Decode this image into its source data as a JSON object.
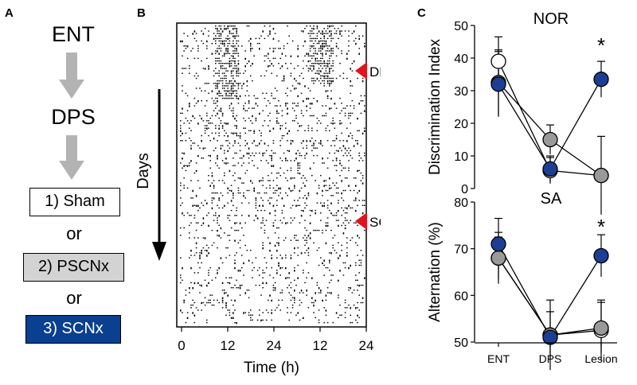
{
  "panel_a": {
    "letter": "A",
    "step1": "ENT",
    "step2": "DPS",
    "groups": [
      {
        "label": "1) Sham",
        "fill": "#ffffff",
        "text_color": "#000000"
      },
      {
        "label": "2) PSCNx",
        "fill": "#d3d3d3",
        "text_color": "#000000"
      },
      {
        "label": "3) SCNx",
        "fill": "#0b3f8f",
        "text_color": "#ffffff"
      }
    ],
    "or_label": "or",
    "arrow_color": "#b3b3b3"
  },
  "panel_b": {
    "letter": "B",
    "days_label": "Days",
    "markers": [
      {
        "label": "DPS"
      },
      {
        "label": "SCNx"
      }
    ],
    "marker_color": "#e0141e",
    "x_ticks": [
      "0",
      "12",
      "24",
      "12",
      "24"
    ],
    "xlabel": "Time (h)"
  },
  "panel_c": {
    "letter": "C",
    "colors": {
      "sham": "#ffffff",
      "pscnx": "#999999",
      "scnx": "#1c3f94"
    },
    "chart_data": [
      {
        "type": "line",
        "title": "NOR",
        "ylabel": "Discrimination Index",
        "ylim": [
          0,
          50
        ],
        "yticks": [
          "0",
          "10",
          "20",
          "30",
          "40",
          "50"
        ],
        "categories": [
          "ENT",
          "DPS",
          "Lesion"
        ],
        "series": [
          {
            "key": "sham",
            "values": [
              39,
              5.5,
              4
            ],
            "errors": [
              7.5,
              4,
              2
            ]
          },
          {
            "key": "pscnx",
            "values": [
              32.5,
              15,
              4
            ],
            "errors": [
              10,
              4.5,
              12
            ]
          },
          {
            "key": "scnx",
            "values": [
              32,
              6,
              33.5
            ],
            "errors": [
              10,
              4,
              5.5
            ]
          }
        ],
        "significance": {
          "category": "Lesion",
          "label": "*"
        }
      },
      {
        "type": "line",
        "title": "SA",
        "ylabel": "Alternation (%)",
        "ylim": [
          50,
          80
        ],
        "yticks": [
          "50",
          "60",
          "70",
          "80"
        ],
        "categories": [
          "ENT",
          "DPS",
          "Lesion"
        ],
        "series": [
          {
            "key": "sham",
            "values": [
              68,
              51.5,
              52.5
            ],
            "errors": [
              4.5,
              7.5,
              6.5
            ]
          },
          {
            "key": "pscnx",
            "values": [
              68,
              51.5,
              53
            ],
            "errors": [
              5.5,
              5,
              5.5
            ]
          },
          {
            "key": "scnx",
            "values": [
              71,
              51,
              68.5
            ],
            "errors": [
              5.5,
              1.5,
              4.5
            ]
          }
        ],
        "significance": {
          "category": "Lesion",
          "label": "*"
        }
      }
    ]
  }
}
